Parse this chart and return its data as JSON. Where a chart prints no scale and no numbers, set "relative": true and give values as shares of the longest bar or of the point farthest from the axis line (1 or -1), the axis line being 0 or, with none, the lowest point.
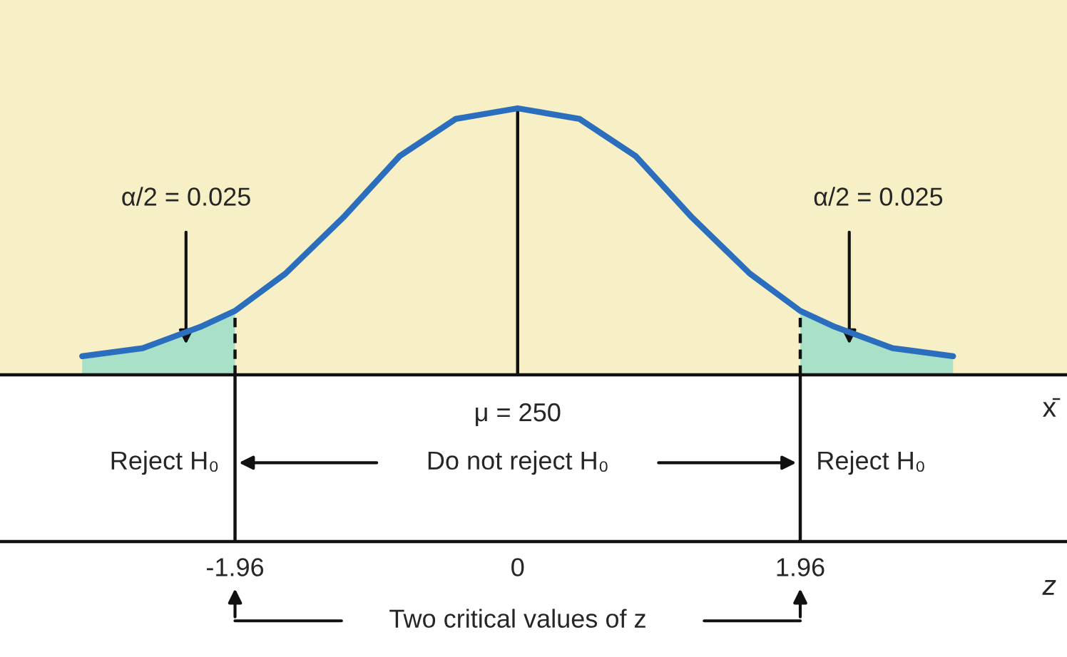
{
  "chart_data": {
    "type": "line",
    "relative": true,
    "series": [
      {
        "type": "area",
        "color": "#a8e0c8",
        "x": [
          -3.02,
          -2.6,
          -2.2,
          -1.96
        ],
        "values": [
          0.07,
          0.1,
          0.18,
          0.24
        ]
      },
      {
        "type": "area",
        "color": "#a8e0c8",
        "x": [
          1.96,
          2.2,
          2.6,
          3.02
        ],
        "values": [
          0.24,
          0.18,
          0.1,
          0.07
        ]
      },
      {
        "color": "#2a6ebd",
        "x": [
          -3.02,
          -2.6,
          -2.2,
          -1.96,
          -1.61,
          -1.21,
          -0.82,
          -0.43,
          0,
          0.43,
          0.82,
          1.21,
          1.61,
          1.96,
          2.2,
          2.6,
          3.02
        ],
        "values": [
          0.07,
          0.1,
          0.18,
          0.24,
          0.38,
          0.59,
          0.82,
          0.96,
          1,
          0.96,
          0.82,
          0.59,
          0.38,
          0.24,
          0.18,
          0.1,
          0.07
        ]
      }
    ],
    "xlim": [
      -3.59,
      3.81
    ],
    "xticks": [
      -1.96,
      0,
      1.96
    ],
    "xlabel": "z",
    "ref_lines": [
      {
        "axis": "x",
        "value": -1.96,
        "line_style": "dashed",
        "color": "#111111"
      },
      {
        "axis": "x",
        "value": 0,
        "line_style": "solid",
        "color": "#111111"
      },
      {
        "axis": "x",
        "value": 1.96,
        "line_style": "dashed",
        "color": "#111111"
      }
    ],
    "annotations": [
      "α/2 = 0.025",
      "α/2 = 0.025",
      "Reject H₀",
      "Do not reject H₀",
      "Reject H₀",
      "Two critical values of z",
      {
        "text": "μ = 250",
        "x": 0,
        "y": 0
      },
      "x̄"
    ],
    "grid": false
  }
}
